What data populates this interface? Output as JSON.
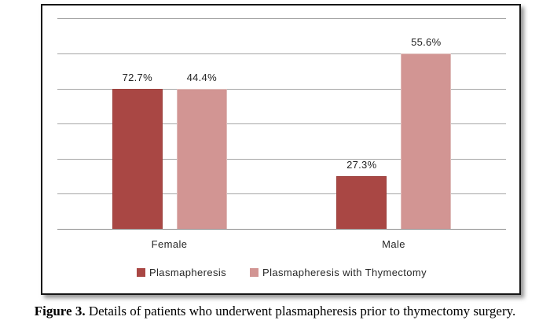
{
  "chart_data": {
    "type": "bar",
    "categories": [
      "Female",
      "Male"
    ],
    "series": [
      {
        "name": "Plasmapheresis",
        "color": "#a94744",
        "border_color": "#9c413e",
        "values": [
          72.7,
          27.3
        ],
        "labels": [
          "72.7%",
          "27.3%"
        ],
        "bar_height_units": [
          4,
          1.5
        ]
      },
      {
        "name": "Plasmapheresis with Thymectomy",
        "color": "#d29593",
        "border_color": "#dfbcba",
        "values": [
          44.4,
          55.6
        ],
        "labels": [
          "44.4%",
          "55.6%"
        ],
        "bar_height_units": [
          4,
          5
        ]
      }
    ],
    "ylim_units": [
      0,
      6
    ],
    "gridline_units": [
      1,
      2,
      3,
      4,
      5,
      6
    ],
    "grid": true,
    "grid_color": "#a6a6a6",
    "axis_color": "#8c8c8c",
    "legend_position": "bottom",
    "y_axis_labels_shown": false
  },
  "caption": {
    "prefix": "Figure 3.",
    "text": "Details of patients who underwent plasmapheresis prior to thymectomy surgery."
  }
}
